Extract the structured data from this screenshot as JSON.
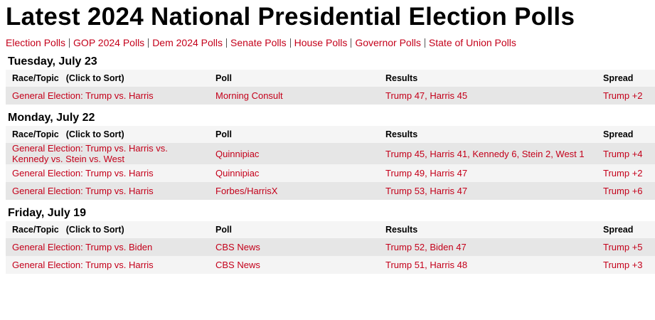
{
  "header": {
    "title": "Latest 2024 National Presidential Election Polls",
    "nav": [
      "Election Polls",
      "GOP 2024 Polls",
      "Dem 2024 Polls",
      "Senate Polls",
      "House Polls",
      "Governor Polls",
      "State of Union Polls"
    ]
  },
  "table": {
    "columns": [
      "Race/Topic",
      "Poll",
      "Results",
      "Spread"
    ],
    "sort_hint": "(Click to Sort)",
    "sections": [
      {
        "date": "Tuesday, July 23",
        "rows": [
          [
            "General Election: Trump vs. Harris",
            "Morning Consult",
            "Trump 47, Harris 45",
            "Trump +2"
          ]
        ]
      },
      {
        "date": "Monday, July 22",
        "rows": [
          [
            "General Election: Trump vs. Harris vs. Kennedy vs. Stein vs. West",
            "Quinnipiac",
            "Trump 45, Harris 41, Kennedy 6, Stein 2, West 1",
            "Trump +4"
          ],
          [
            "General Election: Trump vs. Harris",
            "Quinnipiac",
            "Trump 49, Harris 47",
            "Trump +2"
          ],
          [
            "General Election: Trump vs. Harris",
            "Forbes/HarrisX",
            "Trump 53, Harris 47",
            "Trump +6"
          ]
        ]
      },
      {
        "date": "Friday, July 19",
        "rows": [
          [
            "General Election: Trump vs. Biden",
            "CBS News",
            "Trump 52, Biden 47",
            "Trump +5"
          ],
          [
            "General Election: Trump vs. Harris",
            "CBS News",
            "Trump 51, Harris 48",
            "Trump +3"
          ]
        ]
      }
    ]
  }
}
